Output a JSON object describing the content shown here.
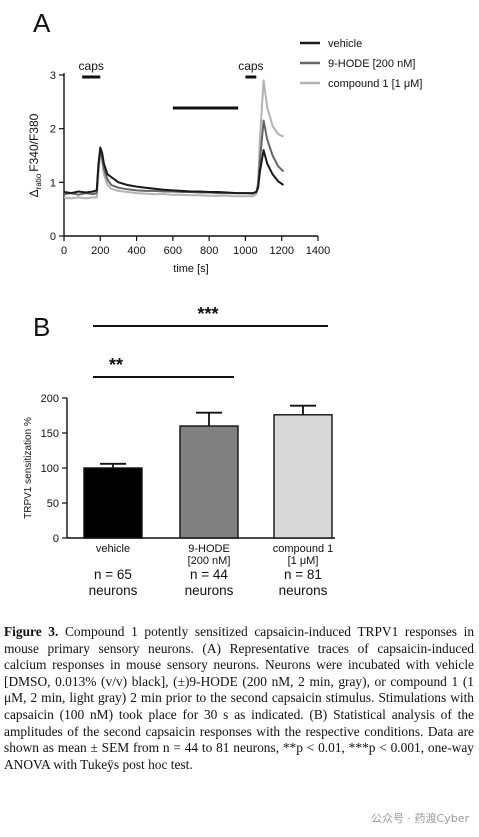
{
  "panelA": {
    "letter": "A",
    "chart_data": {
      "type": "line",
      "xlabel": "time [s]",
      "ylabel_main": "Δ",
      "ylabel_sub": "ratio",
      "ylabel_tail": "F340/F380",
      "xlim": [
        0,
        1400
      ],
      "ylim": [
        0,
        3
      ],
      "xticks": [
        0,
        200,
        400,
        600,
        800,
        1000,
        1200,
        1400
      ],
      "yticks": [
        0,
        1,
        2,
        3
      ],
      "annotations": [
        {
          "label": "caps",
          "x_start": 100,
          "x_end": 200
        },
        {
          "label": "caps",
          "x_start": 1000,
          "x_end": 1060
        }
      ],
      "preincubation_bar": {
        "x_start": 600,
        "x_end": 960
      },
      "legend": {
        "position": "top-right"
      },
      "series": [
        {
          "name": "vehicle",
          "color": "#1a1a1a",
          "x": [
            0,
            40,
            80,
            120,
            160,
            180,
            190,
            200,
            210,
            220,
            240,
            260,
            300,
            350,
            400,
            450,
            500,
            550,
            600,
            650,
            700,
            750,
            800,
            850,
            900,
            950,
            1000,
            1040,
            1060,
            1070,
            1080,
            1100,
            1120,
            1150,
            1180,
            1210
          ],
          "y": [
            0.82,
            0.8,
            0.83,
            0.81,
            0.83,
            0.85,
            1.35,
            1.65,
            1.55,
            1.35,
            1.15,
            1.1,
            1.0,
            0.95,
            0.92,
            0.9,
            0.88,
            0.86,
            0.85,
            0.84,
            0.83,
            0.83,
            0.82,
            0.82,
            0.81,
            0.8,
            0.8,
            0.8,
            0.82,
            0.9,
            1.2,
            1.6,
            1.35,
            1.15,
            1.02,
            0.95
          ]
        },
        {
          "name": "9-HODE [200 nM]",
          "color": "#666666",
          "x": [
            0,
            40,
            80,
            120,
            160,
            180,
            190,
            200,
            210,
            220,
            240,
            260,
            300,
            350,
            400,
            450,
            500,
            550,
            600,
            650,
            700,
            750,
            800,
            850,
            900,
            950,
            1000,
            1040,
            1060,
            1070,
            1080,
            1100,
            1120,
            1150,
            1180,
            1210
          ],
          "y": [
            0.78,
            0.8,
            0.77,
            0.8,
            0.78,
            0.8,
            1.3,
            1.6,
            1.45,
            1.25,
            1.05,
            0.95,
            0.9,
            0.87,
            0.85,
            0.84,
            0.84,
            0.83,
            0.83,
            0.82,
            0.82,
            0.81,
            0.81,
            0.8,
            0.8,
            0.8,
            0.8,
            0.79,
            0.82,
            0.95,
            1.4,
            2.15,
            1.8,
            1.5,
            1.3,
            1.2
          ]
        },
        {
          "name": "compound 1 [1 μM]",
          "color": "#b3b3b3",
          "x": [
            0,
            40,
            80,
            120,
            160,
            180,
            190,
            200,
            210,
            220,
            240,
            260,
            300,
            350,
            400,
            450,
            500,
            550,
            600,
            650,
            700,
            750,
            800,
            850,
            900,
            950,
            1000,
            1040,
            1060,
            1070,
            1080,
            1100,
            1120,
            1150,
            1180,
            1210
          ],
          "y": [
            0.72,
            0.7,
            0.72,
            0.7,
            0.72,
            0.72,
            1.2,
            1.55,
            1.4,
            1.15,
            0.95,
            0.88,
            0.84,
            0.82,
            0.8,
            0.79,
            0.78,
            0.78,
            0.77,
            0.77,
            0.76,
            0.76,
            0.75,
            0.75,
            0.75,
            0.74,
            0.74,
            0.74,
            0.78,
            1.0,
            1.8,
            2.9,
            2.4,
            2.05,
            1.9,
            1.85
          ]
        }
      ]
    }
  },
  "panelB": {
    "letter": "B",
    "chart_data": {
      "type": "bar",
      "ylabel": "TRPV1 sensitization %",
      "ylim": [
        0,
        200
      ],
      "yticks": [
        0,
        50,
        100,
        150,
        200
      ],
      "categories": [
        {
          "lines": [
            "vehicle"
          ],
          "n_lines": [
            "n = 65",
            "neurons"
          ],
          "value": 100,
          "sem": 6,
          "color": "#000000"
        },
        {
          "lines": [
            "9-HODE",
            "[200 nM]"
          ],
          "n_lines": [
            "n = 44",
            "neurons"
          ],
          "value": 160,
          "sem": 19,
          "color": "#808080"
        },
        {
          "lines": [
            "compound 1",
            "[1 μM]"
          ],
          "n_lines": [
            "n = 81",
            "neurons"
          ],
          "value": 176,
          "sem": 13,
          "color": "#d9d9d9"
        }
      ],
      "significance": [
        {
          "label": "***",
          "from": 0,
          "to": 2
        },
        {
          "label": "**",
          "from": 0,
          "to": 1
        }
      ]
    }
  },
  "caption": {
    "figure_label": "Figure 3.",
    "text": " Compound 1 potently sensitized capsaicin-induced TRPV1 responses in mouse primary sensory neurons. (A) Representative traces of capsaicin-induced calcium responses in mouse sensory neurons. Neurons were incubated with vehicle [DMSO, 0.013% (v/v) black], (±)9-HODE (200 nM, 2 min, gray), or compound 1 (1 μM, 2 min, light gray) 2 min prior to the second capsaicin stimulus. Stimulations with capsaicin (100 nM) took place for 30 s as indicated. (B) Statistical analysis of the amplitudes of the second capsaicin responses with the respective conditions. Data are shown as mean ± SEM from n = 44 to 81 neurons, **p < 0.01, ***p < 0.001, one-way ANOVA with Tukeÿs post hoc test."
  },
  "watermark": "公众号 · 药渡Cyber"
}
